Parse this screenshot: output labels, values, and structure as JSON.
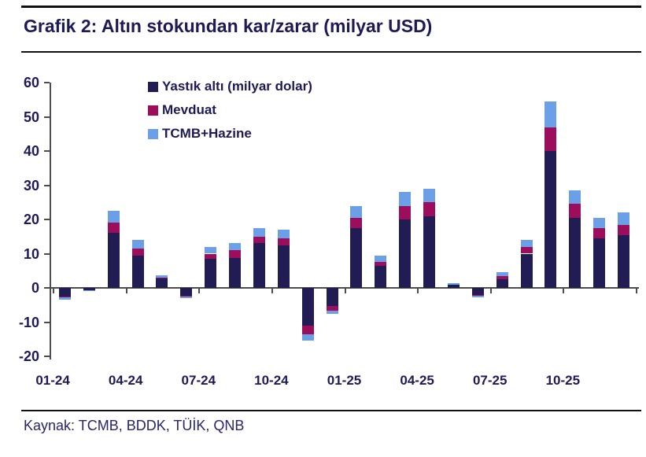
{
  "header": {
    "title": "Grafik 2: Altın stokundan kar/zarar (milyar USD)"
  },
  "footer": {
    "source": "Kaynak: TCMB, BDDK, TÜİK, QNB"
  },
  "colors": {
    "text_navy": "#1e1a56",
    "rule_black": "#111111",
    "axis_gray": "#4d4d4d"
  },
  "chart_data": {
    "type": "bar",
    "stacked": true,
    "grid": false,
    "title": "Grafik 2: Altın stokundan kar/zarar (milyar USD)",
    "ylabel": "",
    "xlabel": "",
    "ylim": [
      -20,
      60
    ],
    "y_ticks": [
      60,
      50,
      40,
      30,
      20,
      10,
      0,
      -10,
      -20
    ],
    "legend_position": "top-inside",
    "categories": [
      "01-24",
      "02-24",
      "03-24",
      "04-24",
      "05-24",
      "06-24",
      "07-24",
      "08-24",
      "09-24",
      "10-24",
      "11-24",
      "12-24",
      "01-25",
      "02-25",
      "03-25",
      "04-25",
      "05-25",
      "06-25",
      "07-25",
      "08-25",
      "09-25",
      "10-25",
      "11-25",
      "12-25"
    ],
    "x_tick_labels": [
      "01-24",
      "04-24",
      "07-24",
      "10-24",
      "01-25",
      "04-25",
      "07-25",
      "10-25"
    ],
    "x_tick_every": 3,
    "series": [
      {
        "name": "Yastık altı (milyar dolar)",
        "color": "#211d54",
        "values": [
          -2.5,
          -0.8,
          16,
          9.5,
          2.8,
          -2.3,
          8.5,
          8.7,
          13,
          12.5,
          -11,
          -5.4,
          17.5,
          6.5,
          20,
          21,
          1,
          -2,
          2.5,
          10,
          40,
          20.5,
          14.5,
          15.5
        ]
      },
      {
        "name": "Mevduat",
        "color": "#9c0e5c",
        "values": [
          -0.3,
          0,
          3,
          2,
          0.2,
          -0.2,
          1.5,
          2.3,
          2,
          2,
          -2.5,
          -1.2,
          3,
          1,
          4,
          4,
          0,
          -0.2,
          1,
          2,
          7,
          4,
          3,
          3
        ]
      },
      {
        "name": "TCMB+Hazine",
        "color": "#6ba0e8",
        "values": [
          -0.7,
          -0.2,
          3.5,
          2.5,
          0.7,
          -0.5,
          2,
          2,
          2.5,
          2.5,
          -2,
          -0.9,
          3.5,
          2,
          4,
          4,
          0.4,
          -0.6,
          1,
          2,
          7.5,
          4,
          3,
          3.5
        ]
      }
    ]
  }
}
